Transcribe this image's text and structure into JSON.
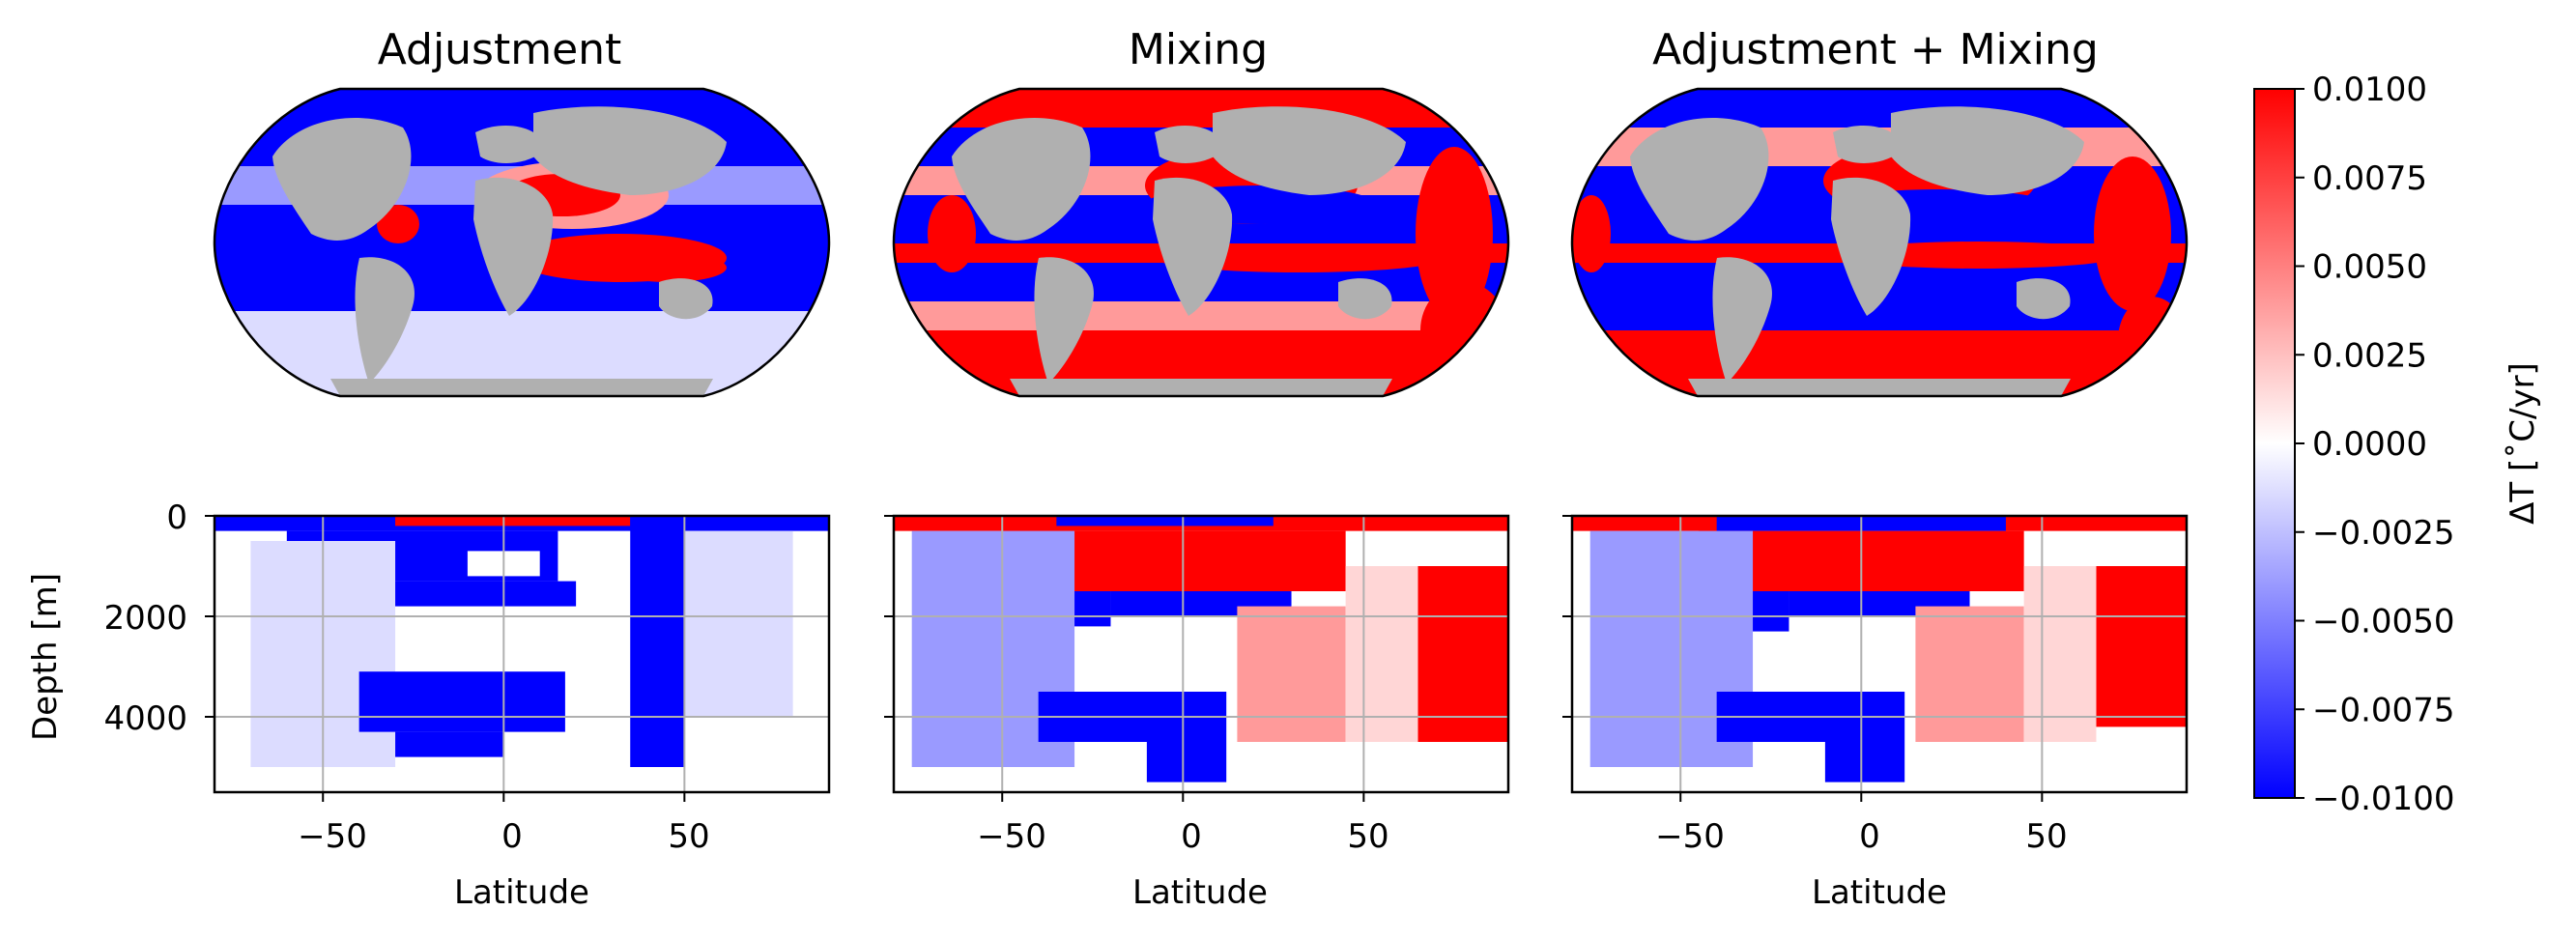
{
  "chart_data": [
    {
      "type": "heatmap",
      "panel": "map",
      "title": "Adjustment",
      "projection": "robinson",
      "pattern": "adjustment"
    },
    {
      "type": "heatmap",
      "panel": "map",
      "title": "Mixing",
      "projection": "robinson",
      "pattern": "mixing"
    },
    {
      "type": "heatmap",
      "panel": "map",
      "title": "Adjustment + Mixing",
      "projection": "robinson",
      "pattern": "combined"
    },
    {
      "type": "heatmap",
      "panel": "section",
      "xlabel": "Latitude",
      "ylabel": "Depth [m]",
      "xlim": [
        -80,
        90
      ],
      "ylim": [
        5500,
        0
      ],
      "xticks": [
        "−50",
        "0",
        "50"
      ],
      "yticks": [
        "0",
        "2000",
        "4000"
      ],
      "grid": true,
      "pattern": "adjustment"
    },
    {
      "type": "heatmap",
      "panel": "section",
      "xlabel": "Latitude",
      "xlim": [
        -80,
        90
      ],
      "ylim": [
        5500,
        0
      ],
      "xticks": [
        "−50",
        "0",
        "50"
      ],
      "grid": true,
      "pattern": "mixing"
    },
    {
      "type": "heatmap",
      "panel": "section",
      "xlabel": "Latitude",
      "xlim": [
        -80,
        90
      ],
      "ylim": [
        5500,
        0
      ],
      "xticks": [
        "−50",
        "0",
        "50"
      ],
      "grid": true,
      "pattern": "combined"
    }
  ],
  "colorbar": {
    "label": "ΔT [˚C/yr]",
    "vmin": -0.01,
    "vmax": 0.01,
    "ticks": [
      "0.0100",
      "0.0075",
      "0.0050",
      "0.0025",
      "0.0000",
      "−0.0025",
      "−0.0050",
      "−0.0075",
      "−0.0100"
    ],
    "cmap": "bwr",
    "color_low": "#0000ff",
    "color_mid": "#ffffff",
    "color_high": "#ff0000"
  },
  "colors": {
    "land": "#b0b0b0",
    "grid": "#b0b0b0"
  }
}
